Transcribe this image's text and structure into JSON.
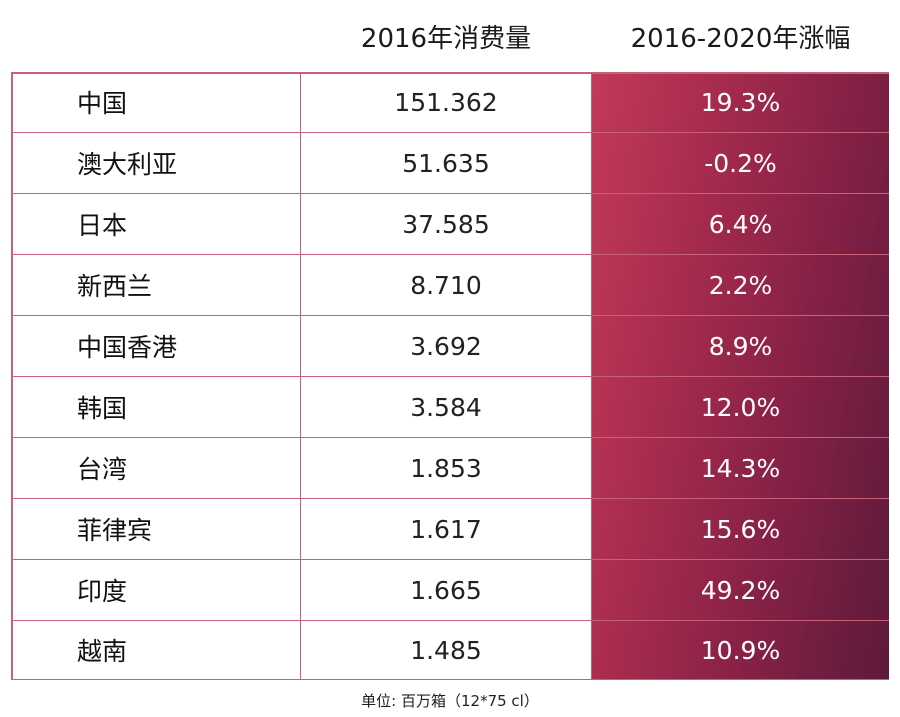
{
  "table": {
    "headers": [
      "",
      "2016年消费量",
      "2016-2020年涨幅"
    ],
    "rows": [
      {
        "region": "中国",
        "consumption_2016": "151.362",
        "growth_2016_2020": "19.3%"
      },
      {
        "region": "澳大利亚",
        "consumption_2016": "51.635",
        "growth_2016_2020": "-0.2%"
      },
      {
        "region": "日本",
        "consumption_2016": "37.585",
        "growth_2016_2020": "6.4%"
      },
      {
        "region": "新西兰",
        "consumption_2016": "8.710",
        "growth_2016_2020": "2.2%"
      },
      {
        "region": "中国香港",
        "consumption_2016": "3.692",
        "growth_2016_2020": "8.9%"
      },
      {
        "region": "韩国",
        "consumption_2016": "3.584",
        "growth_2016_2020": "12.0%"
      },
      {
        "region": "台湾",
        "consumption_2016": "1.853",
        "growth_2016_2020": "14.3%"
      },
      {
        "region": "菲律宾",
        "consumption_2016": "1.617",
        "growth_2016_2020": "15.6%"
      },
      {
        "region": "印度",
        "consumption_2016": "1.665",
        "growth_2016_2020": "49.2%"
      },
      {
        "region": "越南",
        "consumption_2016": "1.485",
        "growth_2016_2020": "10.9%"
      }
    ],
    "unit_note": "单位: 百万箱（12*75 cl）"
  },
  "colors": {
    "border": "#c8607a",
    "gradient_start": "#c23a58",
    "gradient_end": "#5d1a3a"
  }
}
